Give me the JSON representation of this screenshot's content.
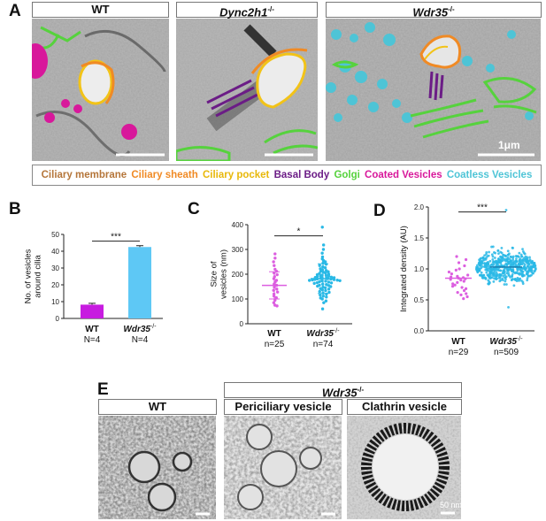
{
  "panelA": {
    "letter": "A",
    "titles": [
      {
        "text": "WT",
        "italic": false,
        "suffix": ""
      },
      {
        "text": "Dync2h1",
        "italic": true,
        "suffix": "-/-"
      },
      {
        "text": "Wdr35",
        "italic": true,
        "suffix": "-/-"
      }
    ],
    "scalebar": "1μm",
    "legend": [
      {
        "label": "Ciliary membrane",
        "color": "#b5763a"
      },
      {
        "label": "Ciliary sheath",
        "color": "#f08a24"
      },
      {
        "label": "Ciliary pocket",
        "color": "#f2c318"
      },
      {
        "label": "Basal Body",
        "color": "#6b1c86"
      },
      {
        "label": "Golgi",
        "color": "#56d23d"
      },
      {
        "label": "Coated Vesicles",
        "color": "#d8189b"
      },
      {
        "label": "Coatless Vesicles",
        "color": "#4ec4d6"
      }
    ]
  },
  "panelB": {
    "letter": "B"
  },
  "panelC": {
    "letter": "C"
  },
  "panelD": {
    "letter": "D"
  },
  "panelE": {
    "letter": "E",
    "header": {
      "text": "Wdr35",
      "suffix": "-/-"
    },
    "titles": [
      "WT",
      "Periciliary vesicle",
      "Clathrin vesicle"
    ],
    "scalebar": "50 nm"
  },
  "chart_data": [
    {
      "id": "B",
      "type": "bar",
      "ylabel": "No. of vesicles\naround cilia",
      "ylim": [
        0,
        50
      ],
      "yticks": [
        0,
        10,
        20,
        30,
        40,
        50
      ],
      "categories": [
        {
          "name": "WT",
          "italic": false,
          "n": "N=4"
        },
        {
          "name": "Wdr35",
          "italic": true,
          "suffix": "-/-",
          "n": "N=4"
        }
      ],
      "values": [
        8.2,
        42.5
      ],
      "errors": [
        0.8,
        0.8
      ],
      "colors": [
        "#c71ce0",
        "#5ec8f5"
      ],
      "significance": "***"
    },
    {
      "id": "C",
      "type": "scatter",
      "ylabel": "Size of\nvesicles (nm)",
      "ylim": [
        0,
        400
      ],
      "yticks": [
        0,
        100,
        200,
        300,
        400
      ],
      "categories": [
        {
          "name": "WT",
          "italic": false,
          "n": "n=25"
        },
        {
          "name": "Wdr35",
          "italic": true,
          "suffix": "-/-",
          "n": "n=74"
        }
      ],
      "series": [
        {
          "color": "#dc5ee0",
          "mean": 155,
          "sd": 55,
          "values": [
            282,
            265,
            250,
            235,
            220,
            212,
            205,
            198,
            190,
            182,
            175,
            168,
            160,
            155,
            148,
            140,
            135,
            128,
            120,
            112,
            105,
            95,
            85,
            75,
            72
          ]
        },
        {
          "color": "#29b9e6",
          "mean": 182,
          "sd": 60,
          "values": [
            390,
            318,
            300,
            285,
            270,
            262,
            255,
            250,
            245,
            240,
            235,
            230,
            226,
            222,
            218,
            215,
            212,
            210,
            208,
            205,
            203,
            200,
            198,
            196,
            195,
            193,
            192,
            190,
            188,
            187,
            186,
            185,
            184,
            183,
            182,
            181,
            180,
            179,
            178,
            177,
            176,
            175,
            174,
            173,
            172,
            170,
            168,
            166,
            165,
            163,
            160,
            158,
            156,
            154,
            152,
            150,
            148,
            145,
            142,
            140,
            137,
            134,
            130,
            127,
            124,
            120,
            116,
            112,
            108,
            104,
            100,
            92,
            85,
            60
          ]
        }
      ],
      "significance": "*"
    },
    {
      "id": "D",
      "type": "scatter",
      "ylabel": "Integrated density (AU)",
      "ylim": [
        0.0,
        2.0
      ],
      "yticks": [
        0.0,
        0.5,
        1.0,
        1.5,
        2.0
      ],
      "categories": [
        {
          "name": "WT",
          "italic": false,
          "n": "n=29"
        },
        {
          "name": "Wdr35",
          "italic": true,
          "suffix": "-/-",
          "n": "n=509"
        }
      ],
      "series": [
        {
          "color": "#dc5ee0",
          "mean": 0.85,
          "sd": 0.18,
          "values": [
            1.2,
            1.15,
            1.1,
            1.05,
            1.0,
            0.98,
            0.95,
            0.92,
            0.9,
            0.88,
            0.87,
            0.86,
            0.85,
            0.84,
            0.83,
            0.82,
            0.8,
            0.78,
            0.76,
            0.74,
            0.72,
            0.7,
            0.68,
            0.65,
            0.62,
            0.6,
            0.58,
            0.55,
            0.52
          ]
        },
        {
          "color": "#29b9e6",
          "mean": 1.03,
          "sd": 0.2,
          "min": 0.38,
          "max": 1.95,
          "count": 509
        }
      ],
      "significance": "***"
    }
  ]
}
